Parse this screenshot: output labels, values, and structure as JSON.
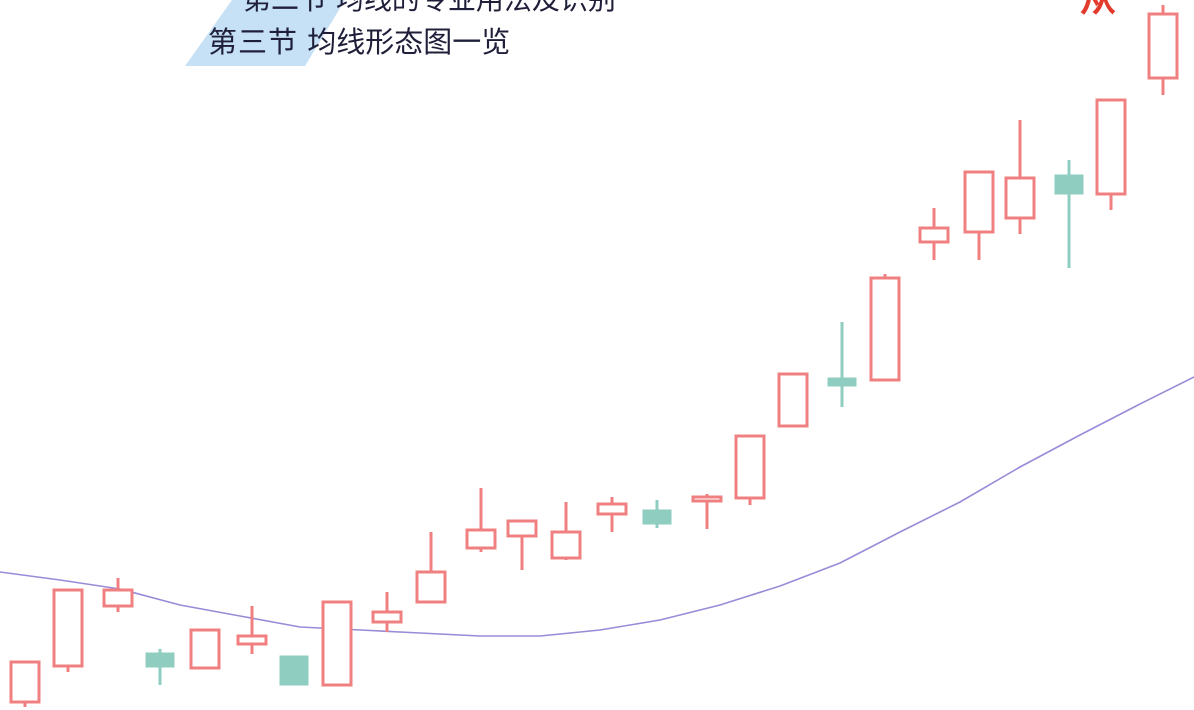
{
  "header": {
    "top_cut_text": "第二节 均线的专业用法及识别",
    "section_number": "第三节",
    "section_title": "均线形态图一览",
    "corner_mark": "从"
  },
  "colors": {
    "up_candle": "#f08080",
    "down_candle": "#8ecdbf",
    "moving_average": "#9b8ad8",
    "header_accent": "#bcdcf5"
  },
  "chart_data": {
    "type": "candlestick",
    "title": "",
    "xlabel": "",
    "ylabel": "",
    "ylim": [
      0,
      710
    ],
    "grid": false,
    "legend": "none",
    "candles": [
      {
        "x": 25,
        "open": 8,
        "close": 48,
        "high": 48,
        "low": 3
      },
      {
        "x": 68,
        "open": 44,
        "close": 120,
        "high": 120,
        "low": 38
      },
      {
        "x": 118,
        "open": 104,
        "close": 120,
        "high": 132,
        "low": 98
      },
      {
        "x": 160,
        "open": 57,
        "close": 43,
        "high": 61,
        "low": 25
      },
      {
        "x": 205,
        "open": 42,
        "close": 80,
        "high": 80,
        "low": 42
      },
      {
        "x": 252,
        "open": 66,
        "close": 74,
        "high": 104,
        "low": 56
      },
      {
        "x": 294,
        "open": 54,
        "close": 25,
        "high": 54,
        "low": 25
      },
      {
        "x": 337,
        "open": 25,
        "close": 108,
        "high": 108,
        "low": 25
      },
      {
        "x": 387,
        "open": 88,
        "close": 98,
        "high": 118,
        "low": 78
      },
      {
        "x": 431,
        "open": 108,
        "close": 138,
        "high": 178,
        "low": 108
      },
      {
        "x": 481,
        "open": 162,
        "close": 180,
        "high": 222,
        "low": 158
      },
      {
        "x": 522,
        "open": 174,
        "close": 189,
        "high": 189,
        "low": 140
      },
      {
        "x": 566,
        "open": 152,
        "close": 178,
        "high": 208,
        "low": 150
      },
      {
        "x": 612,
        "open": 196,
        "close": 206,
        "high": 213,
        "low": 178
      },
      {
        "x": 657,
        "open": 200,
        "close": 186,
        "high": 210,
        "low": 182
      },
      {
        "x": 707,
        "open": 209,
        "close": 213,
        "high": 216,
        "low": 181
      },
      {
        "x": 750,
        "open": 212,
        "close": 274,
        "high": 274,
        "low": 205
      },
      {
        "x": 793,
        "open": 284,
        "close": 336,
        "high": 336,
        "low": 284
      },
      {
        "x": 842,
        "open": 332,
        "close": 324,
        "high": 388,
        "low": 303
      },
      {
        "x": 885,
        "open": 330,
        "close": 432,
        "high": 436,
        "low": 330
      },
      {
        "x": 934,
        "open": 468,
        "close": 482,
        "high": 502,
        "low": 450
      },
      {
        "x": 979,
        "open": 478,
        "close": 538,
        "high": 538,
        "low": 450
      },
      {
        "x": 1020,
        "open": 492,
        "close": 532,
        "high": 590,
        "low": 476
      },
      {
        "x": 1069,
        "open": 535,
        "close": 516,
        "high": 550,
        "low": 442
      },
      {
        "x": 1111,
        "open": 516,
        "close": 610,
        "high": 610,
        "low": 500
      },
      {
        "x": 1163,
        "open": 632,
        "close": 696,
        "high": 705,
        "low": 615
      }
    ],
    "moving_average": {
      "x": [
        0,
        60,
        120,
        180,
        240,
        300,
        360,
        420,
        480,
        540,
        600,
        660,
        720,
        780,
        840,
        900,
        960,
        1020,
        1080,
        1140,
        1194
      ],
      "y": [
        138,
        130,
        121,
        105,
        94,
        83,
        80,
        77,
        74,
        74,
        80,
        90,
        105,
        124,
        147,
        178,
        208,
        243,
        275,
        306,
        333
      ]
    }
  }
}
